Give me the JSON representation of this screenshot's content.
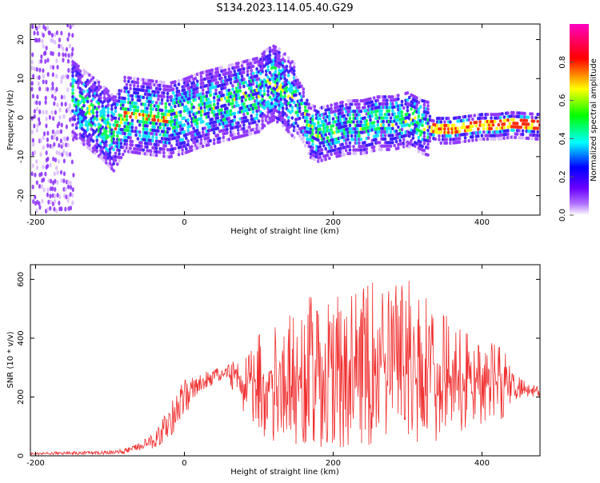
{
  "chart_data": [
    {
      "type": "heatmap",
      "title": "S134.2023.114.05.40.G29",
      "xlabel": "Height of straight line (km)",
      "ylabel": "Frequency (Hz)",
      "xlim": [
        -207,
        478
      ],
      "ylim": [
        -25,
        24
      ],
      "x_ticks": [
        "-200",
        "0",
        "200",
        "400"
      ],
      "x_tick_values": [
        -200,
        0,
        200,
        400
      ],
      "y_ticks": [
        "20",
        "10",
        "0",
        "-10",
        "-20"
      ],
      "y_tick_values": [
        20,
        10,
        0,
        -10,
        -20
      ],
      "colorbar": {
        "label": "Normalized spectral amplitude",
        "range": [
          0,
          1
        ],
        "ticks": [
          "0.0",
          "0.2",
          "0.4",
          "0.6",
          "0.8"
        ],
        "tick_values": [
          0,
          0.2,
          0.4,
          0.6,
          0.8
        ],
        "colormap": [
          "#ffffff",
          "#7a00ff",
          "#0000ff",
          "#00ffff",
          "#00ff00",
          "#ffff00",
          "#ff0000",
          "#ff00ff"
        ]
      },
      "ridge": {
        "x": [
          -150,
          -130,
          -110,
          -95,
          -80,
          -60,
          -40,
          -20,
          0,
          20,
          40,
          60,
          80,
          100,
          110,
          120,
          130,
          140,
          150,
          160,
          170,
          180,
          200,
          220,
          240,
          260,
          280,
          300,
          320,
          340,
          360,
          380,
          400,
          420,
          440,
          478
        ],
        "frequency": [
          5,
          2,
          -1,
          -4,
          1,
          0.5,
          0,
          -0.5,
          0.5,
          2,
          3,
          4,
          5,
          6,
          8,
          9,
          8,
          6,
          4,
          1,
          -3,
          -4,
          -3,
          -2,
          -2,
          -1,
          -1,
          0,
          -2,
          -3,
          -3,
          -2.5,
          -2,
          -2,
          -1.5,
          -2
        ]
      }
    },
    {
      "type": "line",
      "xlabel": "Height of straight line (km)",
      "ylabel": "SNR (10 * v/v)",
      "xlim": [
        -207,
        478
      ],
      "ylim": [
        0,
        650
      ],
      "x_ticks": [
        "-200",
        "0",
        "200",
        "400"
      ],
      "x_tick_values": [
        -200,
        0,
        200,
        400
      ],
      "y_ticks": [
        "0",
        "200",
        "400",
        "600"
      ],
      "y_tick_values": [
        0,
        200,
        400,
        600
      ],
      "color": "#f03030",
      "envelope": {
        "x": [
          -207,
          -150,
          -100,
          -80,
          -60,
          -40,
          -20,
          0,
          20,
          40,
          60,
          80,
          100,
          120,
          140,
          160,
          180,
          200,
          220,
          240,
          260,
          280,
          300,
          320,
          340,
          360,
          380,
          400,
          420,
          430,
          440,
          460,
          478
        ],
        "upper": [
          12,
          15,
          18,
          25,
          45,
          80,
          170,
          265,
          280,
          300,
          320,
          360,
          420,
          470,
          500,
          540,
          560,
          570,
          560,
          570,
          600,
          580,
          620,
          570,
          500,
          460,
          420,
          400,
          380,
          440,
          290,
          250,
          235
        ],
        "lower": [
          3,
          3,
          5,
          8,
          15,
          25,
          60,
          130,
          220,
          240,
          250,
          120,
          60,
          40,
          40,
          30,
          30,
          30,
          30,
          40,
          30,
          40,
          40,
          40,
          50,
          70,
          90,
          110,
          130,
          100,
          180,
          200,
          200
        ]
      }
    }
  ]
}
